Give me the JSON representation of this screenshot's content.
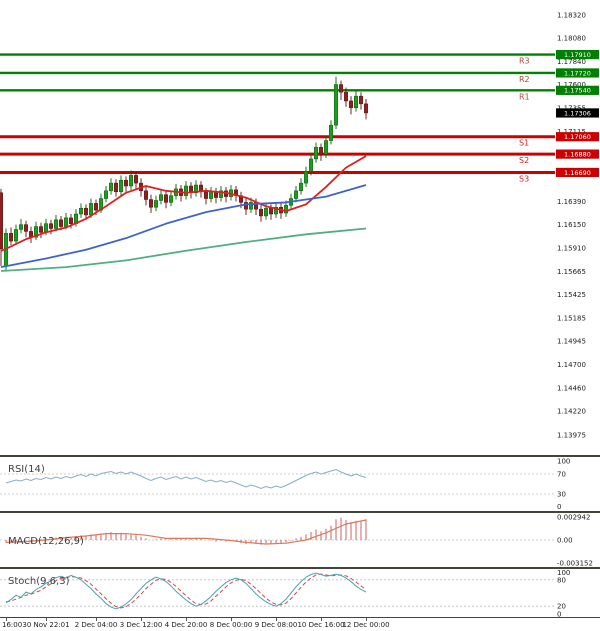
{
  "chart_data": {
    "type": "candlestick",
    "title": "",
    "y_axis_ticks": [
      "1.18320",
      "1.18080",
      "1.17840",
      "1.17600",
      "1.17355",
      "1.17115",
      "1.16390",
      "1.16150",
      "1.15910",
      "1.15665",
      "1.15425",
      "1.15185",
      "1.14945",
      "1.14700",
      "1.14460",
      "1.14220",
      "1.13975"
    ],
    "time_ticks": [
      {
        "label": "16:00",
        "index": 1
      },
      {
        "label": "30 Nov 22:01",
        "index": 9
      },
      {
        "label": "2 Dec 04:00",
        "index": 19
      },
      {
        "label": "3 Dec 12:00",
        "index": 28
      },
      {
        "label": "4 Dec 20:00",
        "index": 37
      },
      {
        "label": "8 Dec 00:00",
        "index": 46
      },
      {
        "label": "9 Dec 08:00",
        "index": 55
      },
      {
        "label": "10 Dec 16:00",
        "index": 64
      },
      {
        "label": "12 Dec 00:00",
        "index": 73
      }
    ],
    "pivot_levels": [
      {
        "label": "R3",
        "price": 1.1791,
        "display": "1.17910",
        "type": "resistance"
      },
      {
        "label": "R2",
        "price": 1.1772,
        "display": "1.17720",
        "type": "resistance"
      },
      {
        "label": "R1",
        "price": 1.1754,
        "display": "1.17540",
        "type": "resistance"
      },
      {
        "label": "S1",
        "price": 1.1706,
        "display": "1.17060",
        "type": "support"
      },
      {
        "label": "S2",
        "price": 1.1688,
        "display": "1.16880",
        "type": "support"
      },
      {
        "label": "S3",
        "price": 1.1669,
        "display": "1.16690",
        "type": "support"
      }
    ],
    "current_price": {
      "price": 1.17306,
      "display": "1.17306"
    },
    "candles": [
      [
        1.1648,
        1.1652,
        1.1572,
        1.159
      ],
      [
        1.1572,
        1.1611,
        1.1568,
        1.1606
      ],
      [
        1.1606,
        1.1612,
        1.1594,
        1.1598
      ],
      [
        1.1598,
        1.1615,
        1.1595,
        1.161
      ],
      [
        1.161,
        1.1621,
        1.1606,
        1.1615
      ],
      [
        1.1615,
        1.1619,
        1.1602,
        1.1608
      ],
      [
        1.1608,
        1.1613,
        1.1596,
        1.1602
      ],
      [
        1.1602,
        1.1618,
        1.1599,
        1.1613
      ],
      [
        1.1613,
        1.1617,
        1.1601,
        1.1607
      ],
      [
        1.1607,
        1.1621,
        1.1604,
        1.1616
      ],
      [
        1.1616,
        1.162,
        1.1605,
        1.1611
      ],
      [
        1.1611,
        1.1625,
        1.1608,
        1.162
      ],
      [
        1.162,
        1.1624,
        1.1609,
        1.1613
      ],
      [
        1.1613,
        1.1627,
        1.161,
        1.1622
      ],
      [
        1.1622,
        1.1626,
        1.1611,
        1.1616
      ],
      [
        1.1616,
        1.1631,
        1.1613,
        1.1626
      ],
      [
        1.1626,
        1.1637,
        1.1622,
        1.1632
      ],
      [
        1.1632,
        1.1636,
        1.162,
        1.1625
      ],
      [
        1.1625,
        1.1642,
        1.1622,
        1.1637
      ],
      [
        1.1637,
        1.1641,
        1.1625,
        1.163
      ],
      [
        1.163,
        1.1647,
        1.1627,
        1.1642
      ],
      [
        1.1642,
        1.1655,
        1.1638,
        1.165
      ],
      [
        1.165,
        1.1663,
        1.1646,
        1.1658
      ],
      [
        1.1658,
        1.1662,
        1.1644,
        1.1649
      ],
      [
        1.1649,
        1.1666,
        1.1645,
        1.1661
      ],
      [
        1.1661,
        1.1665,
        1.1649,
        1.1655
      ],
      [
        1.1655,
        1.1671,
        1.1651,
        1.1666
      ],
      [
        1.1666,
        1.167,
        1.1652,
        1.1658
      ],
      [
        1.1658,
        1.1663,
        1.1644,
        1.165
      ],
      [
        1.165,
        1.1655,
        1.1635,
        1.1641
      ],
      [
        1.1641,
        1.1646,
        1.1627,
        1.1633
      ],
      [
        1.1633,
        1.1645,
        1.1629,
        1.164
      ],
      [
        1.164,
        1.1651,
        1.1636,
        1.1646
      ],
      [
        1.1646,
        1.165,
        1.1632,
        1.1638
      ],
      [
        1.1638,
        1.165,
        1.1634,
        1.1645
      ],
      [
        1.1645,
        1.1657,
        1.1641,
        1.1652
      ],
      [
        1.1652,
        1.1656,
        1.1639,
        1.1645
      ],
      [
        1.1645,
        1.166,
        1.1641,
        1.1655
      ],
      [
        1.1655,
        1.1659,
        1.1642,
        1.1648
      ],
      [
        1.1648,
        1.1661,
        1.1644,
        1.1656
      ],
      [
        1.1656,
        1.166,
        1.1643,
        1.1649
      ],
      [
        1.1649,
        1.1653,
        1.1636,
        1.1642
      ],
      [
        1.1642,
        1.1654,
        1.1638,
        1.1649
      ],
      [
        1.1649,
        1.1653,
        1.1637,
        1.1643
      ],
      [
        1.1643,
        1.1655,
        1.1639,
        1.165
      ],
      [
        1.165,
        1.1654,
        1.1638,
        1.1644
      ],
      [
        1.1644,
        1.1656,
        1.164,
        1.1651
      ],
      [
        1.1651,
        1.1655,
        1.1639,
        1.1645
      ],
      [
        1.1645,
        1.1649,
        1.1632,
        1.1638
      ],
      [
        1.1638,
        1.1643,
        1.1625,
        1.1631
      ],
      [
        1.1631,
        1.1643,
        1.1627,
        1.1638
      ],
      [
        1.1638,
        1.1642,
        1.1625,
        1.1631
      ],
      [
        1.1631,
        1.1636,
        1.1618,
        1.1624
      ],
      [
        1.1624,
        1.1637,
        1.162,
        1.1632
      ],
      [
        1.1632,
        1.1636,
        1.162,
        1.1626
      ],
      [
        1.1626,
        1.1638,
        1.1622,
        1.1633
      ],
      [
        1.1633,
        1.1637,
        1.1621,
        1.1627
      ],
      [
        1.1627,
        1.164,
        1.1623,
        1.1635
      ],
      [
        1.1635,
        1.1647,
        1.1631,
        1.1642
      ],
      [
        1.1642,
        1.1655,
        1.1638,
        1.165
      ],
      [
        1.165,
        1.1663,
        1.1646,
        1.1658
      ],
      [
        1.1658,
        1.1675,
        1.1654,
        1.167
      ],
      [
        1.167,
        1.1688,
        1.1666,
        1.1683
      ],
      [
        1.1683,
        1.17,
        1.1679,
        1.1695
      ],
      [
        1.1695,
        1.1699,
        1.1681,
        1.1688
      ],
      [
        1.1688,
        1.1707,
        1.1684,
        1.1702
      ],
      [
        1.1702,
        1.1723,
        1.1698,
        1.1718
      ],
      [
        1.1718,
        1.1768,
        1.1714,
        1.176
      ],
      [
        1.176,
        1.1764,
        1.1744,
        1.1752
      ],
      [
        1.1752,
        1.1757,
        1.1737,
        1.1743
      ],
      [
        1.1743,
        1.1748,
        1.1729,
        1.1736
      ],
      [
        1.1736,
        1.1753,
        1.1732,
        1.1748
      ],
      [
        1.1748,
        1.1752,
        1.1734,
        1.174
      ],
      [
        1.174,
        1.1745,
        1.1724,
        1.17306
      ]
    ],
    "moving_averages": [
      {
        "name": "ma-fast-red",
        "color": "#e02020",
        "points": [
          [
            0,
            1.1588
          ],
          [
            1,
            1.159
          ],
          [
            5,
            1.16
          ],
          [
            9,
            1.1607
          ],
          [
            13,
            1.1612
          ],
          [
            17,
            1.1621
          ],
          [
            21,
            1.1634
          ],
          [
            25,
            1.1648
          ],
          [
            29,
            1.1655
          ],
          [
            33,
            1.165
          ],
          [
            37,
            1.1648
          ],
          [
            41,
            1.165
          ],
          [
            45,
            1.1648
          ],
          [
            49,
            1.1643
          ],
          [
            53,
            1.1634
          ],
          [
            57,
            1.1629
          ],
          [
            61,
            1.1636
          ],
          [
            65,
            1.1654
          ],
          [
            69,
            1.1674
          ],
          [
            73,
            1.1686
          ]
        ]
      },
      {
        "name": "ma-mid-blue",
        "color": "#3d64c8",
        "points": [
          [
            0,
            1.1571
          ],
          [
            9,
            1.158
          ],
          [
            17,
            1.1589
          ],
          [
            25,
            1.1601
          ],
          [
            33,
            1.1616
          ],
          [
            41,
            1.1628
          ],
          [
            49,
            1.1636
          ],
          [
            57,
            1.1638
          ],
          [
            65,
            1.1644
          ],
          [
            73,
            1.1656
          ]
        ]
      },
      {
        "name": "ma-slow-green",
        "color": "#4fae82",
        "points": [
          [
            0,
            1.1567
          ],
          [
            13,
            1.1571
          ],
          [
            25,
            1.1578
          ],
          [
            37,
            1.1588
          ],
          [
            49,
            1.1597
          ],
          [
            61,
            1.1605
          ],
          [
            73,
            1.1611
          ]
        ]
      }
    ],
    "indicators": {
      "rsi": {
        "label": "RSI(14)",
        "ticks": [
          "100",
          "70",
          "30",
          "0"
        ],
        "levels": [
          70,
          30
        ],
        "values": [
          52,
          55,
          58,
          56,
          60,
          57,
          61,
          59,
          63,
          60,
          64,
          61,
          65,
          62,
          66,
          69,
          65,
          70,
          66,
          71,
          73,
          75,
          71,
          74,
          70,
          74,
          70,
          66,
          61,
          57,
          61,
          64,
          59,
          62,
          65,
          60,
          64,
          60,
          63,
          59,
          55,
          58,
          54,
          57,
          53,
          56,
          52,
          48,
          44,
          48,
          45,
          41,
          45,
          42,
          46,
          43,
          47,
          52,
          57,
          62,
          67,
          71,
          74,
          70,
          73,
          76,
          79,
          74,
          70,
          66,
          70,
          66,
          63
        ]
      },
      "macd": {
        "label": "MACD(12,26,9)",
        "ticks": [
          "0.002942",
          "0.00",
          "-0.003152"
        ],
        "histogram": [
          -0.0003,
          -0.0004,
          -0.0002,
          0.0,
          -0.0001,
          -0.0003,
          -0.0001,
          0.0001,
          0.0002,
          0.0001,
          0.0003,
          0.0002,
          0.0004,
          0.0003,
          0.0005,
          0.0006,
          0.0005,
          0.0007,
          0.0006,
          0.0008,
          0.0009,
          0.001,
          0.0008,
          0.0009,
          0.0007,
          0.0008,
          0.0006,
          0.0004,
          0.0002,
          0.0,
          0.0001,
          0.0002,
          0.0001,
          0.0002,
          0.0003,
          0.0002,
          0.0003,
          0.0002,
          0.0003,
          0.0002,
          0.0,
          -0.0001,
          -0.0002,
          -0.0001,
          -0.0002,
          -0.0001,
          -0.0002,
          -0.0004,
          -0.0005,
          -0.0004,
          -0.0005,
          -0.0006,
          -0.0004,
          -0.0005,
          -0.0004,
          -0.0005,
          -0.0003,
          -0.0001,
          0.0002,
          0.0004,
          0.0007,
          0.001,
          0.0013,
          0.0011,
          0.0014,
          0.0018,
          0.0026,
          0.0028,
          0.0025,
          0.0022,
          0.0024,
          0.0023,
          0.0026
        ],
        "signal_points": [
          [
            1,
            -0.0003
          ],
          [
            5,
            -0.0002
          ],
          [
            9,
            0.0
          ],
          [
            13,
            0.0003
          ],
          [
            17,
            0.0005
          ],
          [
            21,
            0.0008
          ],
          [
            25,
            0.0008
          ],
          [
            29,
            0.0006
          ],
          [
            33,
            0.0002
          ],
          [
            37,
            0.0002
          ],
          [
            41,
            0.0002
          ],
          [
            45,
            0.0
          ],
          [
            49,
            -0.0003
          ],
          [
            53,
            -0.0005
          ],
          [
            57,
            -0.0004
          ],
          [
            61,
            0.0
          ],
          [
            65,
            0.0009
          ],
          [
            69,
            0.002
          ],
          [
            73,
            0.0025
          ]
        ]
      },
      "stoch": {
        "label": "Stoch(9,6,3)",
        "ticks": [
          "100",
          "80",
          "20",
          "0"
        ],
        "levels": [
          80,
          20
        ],
        "k": [
          28,
          35,
          45,
          40,
          52,
          48,
          58,
          64,
          72,
          78,
          85,
          88,
          84,
          90,
          86,
          80,
          70,
          60,
          48,
          38,
          26,
          18,
          14,
          18,
          25,
          35,
          48,
          60,
          72,
          80,
          86,
          82,
          76,
          66,
          54,
          44,
          34,
          26,
          20,
          24,
          32,
          42,
          54,
          64,
          74,
          80,
          84,
          80,
          72,
          60,
          48,
          38,
          30,
          24,
          20,
          26,
          36,
          50,
          64,
          76,
          86,
          92,
          95,
          92,
          88,
          90,
          93,
          90,
          84,
          76,
          66,
          58,
          52
        ],
        "d": [
          30,
          32,
          36,
          40,
          45,
          47,
          52,
          56,
          64,
          71,
          78,
          83,
          85,
          87,
          86,
          84,
          78,
          70,
          59,
          48,
          37,
          27,
          19,
          16,
          19,
          26,
          36,
          47,
          60,
          70,
          79,
          82,
          81,
          74,
          65,
          54,
          44,
          34,
          26,
          24,
          25,
          32,
          43,
          53,
          64,
          73,
          79,
          81,
          78,
          70,
          60,
          49,
          38,
          30,
          24,
          23,
          27,
          37,
          50,
          63,
          75,
          84,
          91,
          93,
          91,
          89,
          90,
          91,
          89,
          83,
          75,
          66,
          58
        ]
      }
    },
    "colors": {
      "up": "#18a01c",
      "up_dark": "#0a5c0d",
      "down": "#8e1f1f",
      "down_dark": "#5c1212",
      "resistance": "#008000",
      "support": "#cc0000",
      "r_label": "#aa4a30",
      "s_label": "#cc2222",
      "current_box": "#000000",
      "rsi_line": "#86aec6",
      "macd_hist": "#d06060",
      "macd_signal": "#e07858",
      "stoch_k": "#4aa3b0",
      "stoch_d": "#cf4a4a",
      "axis_text": "#1c1c1c",
      "separator": "#44443a",
      "grid_dotted": "#bdbdbd"
    }
  }
}
